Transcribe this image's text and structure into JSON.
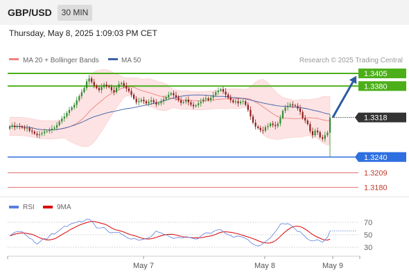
{
  "header": {
    "symbol": "GBP/USD",
    "timeframe": "30 MIN",
    "datetime": "Thursday, May 8, 2025 1:09:03 PM CET"
  },
  "colors": {
    "up": "#2e8b2e",
    "down": "#8b1a1a",
    "bollinger_fill": "#fde3e3",
    "ma20": "#f08080",
    "ma50": "#3c5fa8",
    "resistance": "#4caf1a",
    "support": "#2f6fe0",
    "target": "#e07070",
    "arrow": "#2c5aa0",
    "rsi": "#5b7fe0",
    "rsi_ma": "#d90000"
  },
  "chart_data": [
    {
      "type": "candlestick",
      "legend": [
        {
          "name": "MA 20 + Bollinger Bands",
          "color": "#f08080"
        },
        {
          "name": "MA 50",
          "color": "#3c5fa8"
        }
      ],
      "credit": "Research © 2025 Trading Central",
      "ylim": [
        1.317,
        1.342
      ],
      "x_ticks": [
        "May 7",
        "May 8",
        "May 9"
      ],
      "levels": [
        {
          "value": 1.3405,
          "label": "1.3405",
          "kind": "resistance"
        },
        {
          "value": 1.338,
          "label": "1.3380",
          "kind": "resistance"
        },
        {
          "value": 1.3318,
          "label": "1.3318",
          "kind": "last-price"
        },
        {
          "value": 1.324,
          "label": "1.3240",
          "kind": "support"
        },
        {
          "value": 1.3209,
          "label": "1.3209",
          "kind": "target"
        },
        {
          "value": 1.318,
          "label": "1.3180",
          "kind": "target"
        }
      ],
      "forecast_arrow": {
        "from": 1.3318,
        "to": 1.34
      },
      "close": [
        1.33,
        1.3302,
        1.3299,
        1.3301,
        1.33,
        1.3298,
        1.3296,
        1.3297,
        1.3292,
        1.329,
        1.3286,
        1.3283,
        1.3285,
        1.3287,
        1.329,
        1.3291,
        1.3293,
        1.3296,
        1.3298,
        1.3303,
        1.331,
        1.3316,
        1.332,
        1.3327,
        1.3333,
        1.3338,
        1.3343,
        1.3352,
        1.336,
        1.3368,
        1.3376,
        1.3389,
        1.3395,
        1.3388,
        1.3381,
        1.3376,
        1.3372,
        1.3378,
        1.3383,
        1.338,
        1.3378,
        1.3372,
        1.3368,
        1.3377,
        1.3384,
        1.3386,
        1.338,
        1.3375,
        1.337,
        1.3363,
        1.3355,
        1.3348,
        1.335,
        1.3353,
        1.335,
        1.3346,
        1.3349,
        1.3352,
        1.3348,
        1.3344,
        1.3346,
        1.335,
        1.3354,
        1.3358,
        1.3363,
        1.3366,
        1.3362,
        1.3358,
        1.3352,
        1.3347,
        1.3349,
        1.3353,
        1.3348,
        1.3343,
        1.334,
        1.3342,
        1.3346,
        1.3349,
        1.3354,
        1.3356,
        1.3352,
        1.3357,
        1.3362,
        1.3368,
        1.3371,
        1.3374,
        1.3369,
        1.3363,
        1.3357,
        1.3352,
        1.3348,
        1.335,
        1.3346,
        1.3349,
        1.335,
        1.3343,
        1.3333,
        1.332,
        1.3308,
        1.33,
        1.3297,
        1.3293,
        1.3292,
        1.3299,
        1.3301,
        1.3306,
        1.3303,
        1.3301,
        1.3306,
        1.3317,
        1.3331,
        1.3338,
        1.3341,
        1.3344,
        1.3342,
        1.3341,
        1.3336,
        1.3329,
        1.3317,
        1.3312,
        1.3305,
        1.3291,
        1.3283,
        1.3292,
        1.3289,
        1.3279,
        1.3276,
        1.3283,
        1.3288,
        1.3318
      ],
      "rsi": [
        48,
        51,
        54,
        55,
        55,
        55,
        51,
        48,
        44,
        43,
        38,
        35,
        38,
        42,
        44,
        43,
        48,
        52,
        51,
        54,
        57,
        60,
        64,
        63,
        66,
        68,
        69,
        70,
        72,
        70,
        72,
        75,
        75,
        72,
        67,
        61,
        61,
        61,
        62,
        58,
        54,
        53,
        54,
        54,
        54,
        51,
        49,
        46,
        44,
        43,
        44,
        43,
        41,
        42,
        43,
        44,
        45,
        47,
        52,
        56,
        54,
        53,
        51,
        50,
        48,
        46,
        44,
        45,
        46,
        45,
        45,
        47,
        46,
        45,
        44,
        43,
        44,
        48,
        51,
        53,
        53,
        52,
        55,
        57,
        58,
        58,
        55,
        52,
        50,
        49,
        46,
        47,
        48,
        47,
        46,
        44,
        42,
        38,
        35,
        33,
        32,
        33,
        36,
        39,
        42,
        45,
        50,
        55,
        60,
        67,
        68,
        67,
        68,
        66,
        63,
        59,
        55,
        55,
        51,
        47,
        43,
        41,
        40,
        41,
        42,
        40,
        38,
        42,
        46,
        56
      ],
      "rsi_legend": [
        {
          "name": "RSI",
          "color": "#5b7fe0"
        },
        {
          "name": "9MA",
          "color": "#d90000"
        }
      ],
      "rsi_levels": [
        70,
        50,
        30
      ],
      "rsi_ylim": [
        20,
        80
      ]
    }
  ]
}
